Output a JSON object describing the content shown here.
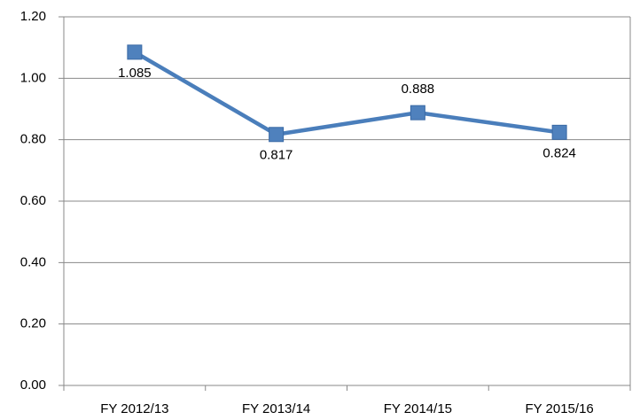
{
  "chart_data": {
    "type": "line",
    "categories": [
      "FY 2012/13",
      "FY 2013/14",
      "FY 2014/15",
      "FY 2015/16"
    ],
    "series": [
      {
        "color": "#4a7ebb",
        "values": [
          1.085,
          0.817,
          0.888,
          0.824
        ]
      }
    ],
    "ylim": [
      0,
      1.2
    ],
    "yticks": [
      {
        "value": 0,
        "label": "0.00"
      },
      {
        "value": 0.2,
        "label": "0.20"
      },
      {
        "value": 0.4,
        "label": "0.40"
      },
      {
        "value": 0.6,
        "label": "0.60"
      },
      {
        "value": 0.8,
        "label": "0.80"
      },
      {
        "value": 1.0,
        "label": "1.00"
      },
      {
        "value": 1.2,
        "label": "1.20"
      }
    ],
    "grid": true
  }
}
